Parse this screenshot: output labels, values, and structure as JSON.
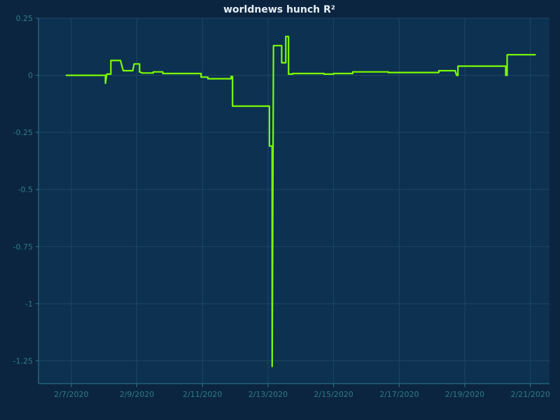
{
  "colors": {
    "page_background": "#0b2540",
    "plot_background": "#0d3150",
    "grid": "#1b4862",
    "axis": "#2e7a8a",
    "series": "#7cfc00"
  },
  "chart_data": {
    "type": "line",
    "title": "worldnews hunch R²",
    "xlabel": "",
    "ylabel": "",
    "x_axis_type": "date",
    "xlim": [
      "2020-02-06T00:00",
      "2020-02-21T14:00"
    ],
    "ylim": [
      -1.35,
      0.25
    ],
    "grid": true,
    "legend": "none",
    "yticks": [
      {
        "value": 0.25,
        "label": "0.25"
      },
      {
        "value": 0,
        "label": "0"
      },
      {
        "value": -0.25,
        "label": "-0.25"
      },
      {
        "value": -0.5,
        "label": "-0.5"
      },
      {
        "value": -0.75,
        "label": "-0.75"
      },
      {
        "value": -1,
        "label": "-1"
      },
      {
        "value": -1.25,
        "label": "-1.25"
      }
    ],
    "xticks": [
      {
        "value": "2020-02-07T00:00",
        "label": "2/7/2020"
      },
      {
        "value": "2020-02-09T00:00",
        "label": "2/9/2020"
      },
      {
        "value": "2020-02-11T00:00",
        "label": "2/11/2020"
      },
      {
        "value": "2020-02-13T00:00",
        "label": "2/13/2020"
      },
      {
        "value": "2020-02-15T00:00",
        "label": "2/15/2020"
      },
      {
        "value": "2020-02-17T00:00",
        "label": "2/17/2020"
      },
      {
        "value": "2020-02-19T00:00",
        "label": "2/19/2020"
      },
      {
        "value": "2020-02-21T00:00",
        "label": "2/21/2020"
      }
    ],
    "series": [
      {
        "color": "#7cfc00",
        "points": [
          [
            "2020-02-06T20:00",
            0.0
          ],
          [
            "2020-02-08T01:00",
            0.0
          ],
          [
            "2020-02-08T01:00",
            -0.035
          ],
          [
            "2020-02-08T02:00",
            0.005
          ],
          [
            "2020-02-08T05:00",
            0.005
          ],
          [
            "2020-02-08T05:00",
            0.065
          ],
          [
            "2020-02-08T12:00",
            0.065
          ],
          [
            "2020-02-08T14:00",
            0.02
          ],
          [
            "2020-02-08T21:00",
            0.02
          ],
          [
            "2020-02-08T22:00",
            0.05
          ],
          [
            "2020-02-09T02:00",
            0.05
          ],
          [
            "2020-02-09T02:00",
            0.015
          ],
          [
            "2020-02-09T04:00",
            0.01
          ],
          [
            "2020-02-09T12:00",
            0.01
          ],
          [
            "2020-02-09T12:00",
            0.015
          ],
          [
            "2020-02-09T19:00",
            0.015
          ],
          [
            "2020-02-09T19:00",
            0.008
          ],
          [
            "2020-02-10T23:00",
            0.008
          ],
          [
            "2020-02-10T23:00",
            -0.008
          ],
          [
            "2020-02-11T04:00",
            -0.008
          ],
          [
            "2020-02-11T04:00",
            -0.015
          ],
          [
            "2020-02-11T21:00",
            -0.015
          ],
          [
            "2020-02-11T21:00",
            -0.005
          ],
          [
            "2020-02-11T22:00",
            -0.005
          ],
          [
            "2020-02-11T22:00",
            -0.135
          ],
          [
            "2020-02-12T22:00",
            -0.135
          ],
          [
            "2020-02-13T01:00",
            -0.135
          ],
          [
            "2020-02-13T01:00",
            -0.31
          ],
          [
            "2020-02-13T03:00",
            -0.31
          ],
          [
            "2020-02-13T03:00",
            -1.275
          ],
          [
            "2020-02-13T04:00",
            0.13
          ],
          [
            "2020-02-13T10:00",
            0.13
          ],
          [
            "2020-02-13T10:00",
            0.055
          ],
          [
            "2020-02-13T13:00",
            0.055
          ],
          [
            "2020-02-13T13:00",
            0.17
          ],
          [
            "2020-02-13T15:00",
            0.17
          ],
          [
            "2020-02-13T15:00",
            0.005
          ],
          [
            "2020-02-13T18:00",
            0.005
          ],
          [
            "2020-02-13T18:00",
            0.008
          ],
          [
            "2020-02-14T17:00",
            0.008
          ],
          [
            "2020-02-14T17:00",
            0.005
          ],
          [
            "2020-02-15T00:00",
            0.005
          ],
          [
            "2020-02-15T00:00",
            0.008
          ],
          [
            "2020-02-15T14:00",
            0.008
          ],
          [
            "2020-02-15T14:00",
            0.015
          ],
          [
            "2020-02-16T16:00",
            0.015
          ],
          [
            "2020-02-16T16:00",
            0.012
          ],
          [
            "2020-02-18T05:00",
            0.012
          ],
          [
            "2020-02-18T05:00",
            0.02
          ],
          [
            "2020-02-18T17:00",
            0.02
          ],
          [
            "2020-02-18T18:00",
            0.0
          ],
          [
            "2020-02-18T19:00",
            0.0
          ],
          [
            "2020-02-18T19:00",
            0.04
          ],
          [
            "2020-02-20T06:00",
            0.04
          ],
          [
            "2020-02-20T06:00",
            0.0
          ],
          [
            "2020-02-20T07:00",
            0.0
          ],
          [
            "2020-02-20T07:00",
            0.09
          ],
          [
            "2020-02-21T04:00",
            0.09
          ]
        ]
      }
    ]
  }
}
